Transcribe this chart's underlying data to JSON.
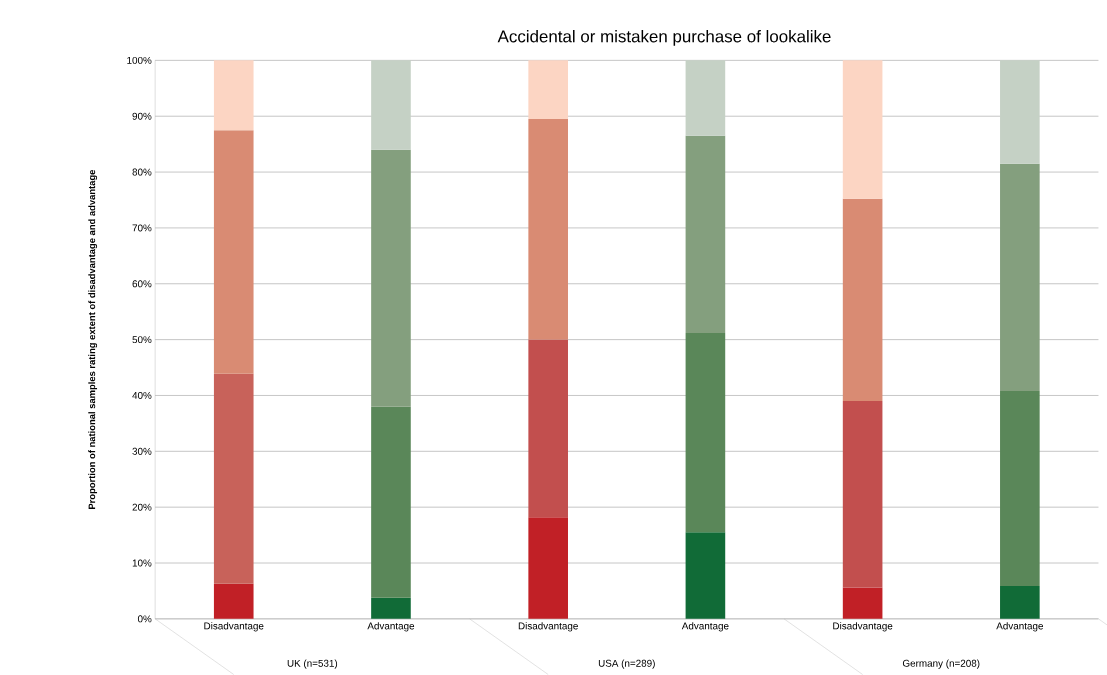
{
  "chart_data": {
    "type": "bar",
    "stacked": true,
    "title": "Accidental or mistaken purchase of lookalike",
    "ylabel": "Proportion of national samples rating extent of disadvantage  and advantage",
    "categories": [
      "Disadvantage",
      "Advantage",
      "Disadvantage",
      "Advantage",
      "Disadvantage",
      "Advantage"
    ],
    "annotations": [
      "UK (n=531)",
      "USA (n=289)",
      "Germany (n=208)"
    ],
    "series": [
      {
        "colors": [
          "#c12026",
          "#116b37",
          "#c12026",
          "#116b37",
          "#c12026",
          "#116b37"
        ],
        "values": [
          6.3,
          3.8,
          18.2,
          15.5,
          5.6,
          5.9
        ]
      },
      {
        "colors": [
          "#c8625a",
          "#5a8759",
          "#c24f4e",
          "#5a8759",
          "#c24f4e",
          "#5a8759"
        ],
        "values": [
          37.6,
          34.2,
          31.8,
          35.7,
          33.4,
          34.9
        ]
      },
      {
        "colors": [
          "#d98b73",
          "#849f7e",
          "#d98b73",
          "#849f7e",
          "#d98b73",
          "#849f7e"
        ],
        "values": [
          43.6,
          46.0,
          39.5,
          35.3,
          36.2,
          40.7
        ]
      },
      {
        "colors": [
          "#fcd5c3",
          "#c5d1c5",
          "#fcd5c3",
          "#c5d1c5",
          "#fcd5c3",
          "#c5d1c5"
        ],
        "values": [
          12.5,
          16.0,
          10.5,
          13.5,
          24.8,
          18.5
        ]
      }
    ],
    "ylim": [
      0,
      100
    ],
    "yticks": [
      {
        "value": 0,
        "label": "0%"
      },
      {
        "value": 10,
        "label": "10%"
      },
      {
        "value": 20,
        "label": "20%"
      },
      {
        "value": 30,
        "label": "30%"
      },
      {
        "value": 40,
        "label": "40%"
      },
      {
        "value": 50,
        "label": "50%"
      },
      {
        "value": 60,
        "label": "60%"
      },
      {
        "value": 70,
        "label": "70%"
      },
      {
        "value": 80,
        "label": "80%"
      },
      {
        "value": 90,
        "label": "90%"
      },
      {
        "value": 100,
        "label": "100%"
      }
    ],
    "grid": "y"
  }
}
